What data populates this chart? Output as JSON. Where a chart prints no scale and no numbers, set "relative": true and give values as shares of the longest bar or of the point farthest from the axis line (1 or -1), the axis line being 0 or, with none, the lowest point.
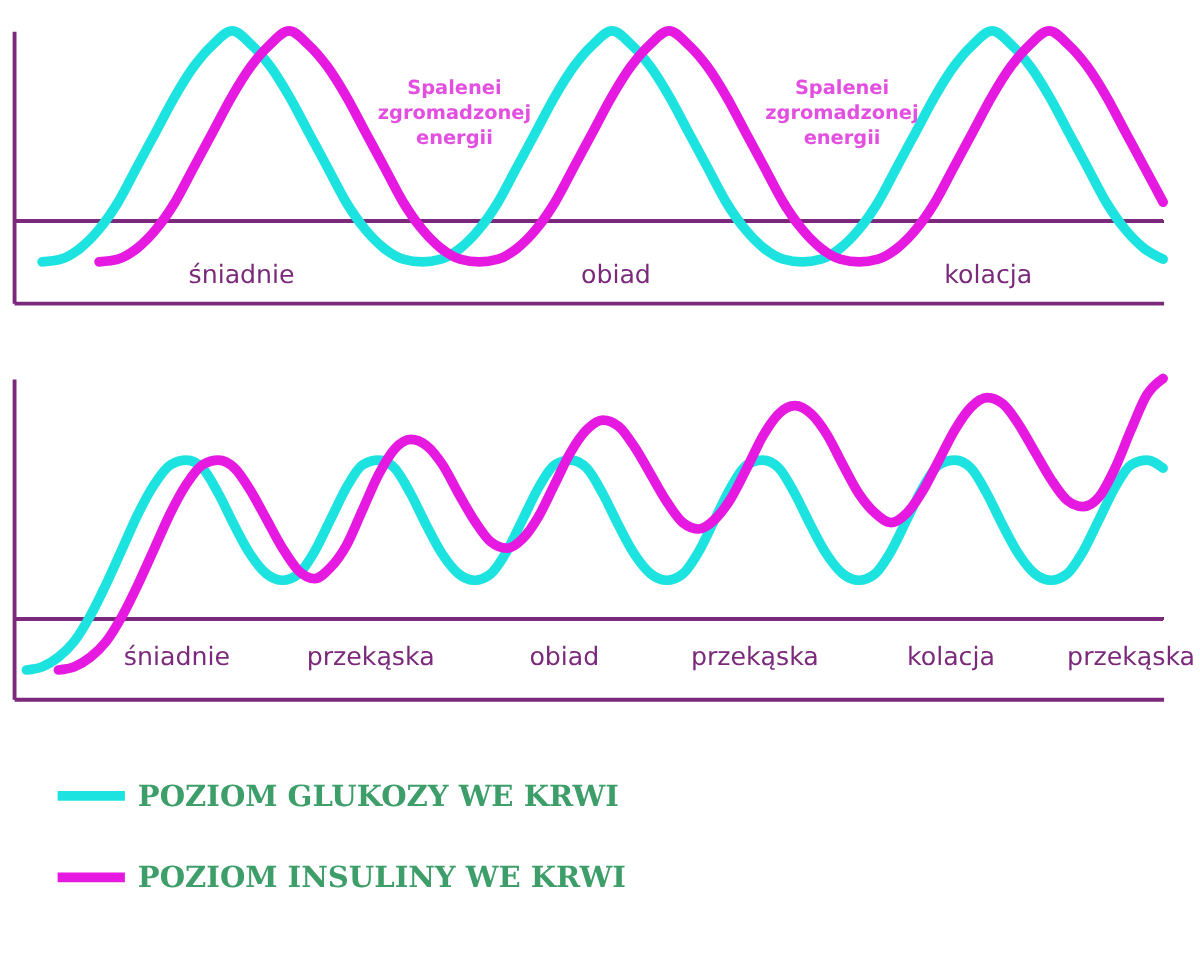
{
  "chart_data": [
    {
      "type": "line",
      "relative": true,
      "line_style": "solid",
      "categories": [
        null,
        null,
        null,
        null,
        null,
        null,
        null,
        null,
        null,
        null,
        null,
        null,
        null,
        null,
        null,
        null,
        null,
        null,
        null,
        null,
        null,
        null,
        null,
        null,
        null,
        null,
        null,
        null,
        null,
        null,
        null,
        null,
        null,
        null,
        null,
        null,
        null,
        null,
        null,
        null,
        null,
        null,
        null,
        null,
        null,
        null,
        null,
        null,
        null,
        null,
        null,
        null,
        null,
        null,
        null,
        null,
        null,
        null,
        null,
        null
      ],
      "series": [
        {
          "color": "#1de3e0",
          "values": [
            0.15,
            0.16,
            0.2,
            0.27,
            0.37,
            0.5,
            0.63,
            0.76,
            0.87,
            0.95,
            1.0,
            0.95,
            0.87,
            0.76,
            0.63,
            0.5,
            0.37,
            0.27,
            0.2,
            0.16,
            0.15,
            0.16,
            0.2,
            0.27,
            0.37,
            0.5,
            0.63,
            0.76,
            0.87,
            0.95,
            1.0,
            0.95,
            0.87,
            0.76,
            0.63,
            0.5,
            0.37,
            0.27,
            0.2,
            0.16,
            0.15,
            0.16,
            0.2,
            0.27,
            0.37,
            0.5,
            0.63,
            0.76,
            0.87,
            0.95,
            1.0,
            0.95,
            0.87,
            0.76,
            0.63,
            0.5,
            0.37,
            0.27,
            0.2,
            0.16
          ]
        },
        {
          "color": "#e619e0",
          "values": [
            null,
            null,
            null,
            0.15,
            0.16,
            0.2,
            0.27,
            0.37,
            0.5,
            0.63,
            0.76,
            0.87,
            0.95,
            1.0,
            0.95,
            0.87,
            0.76,
            0.63,
            0.5,
            0.37,
            0.27,
            0.2,
            0.16,
            0.15,
            0.16,
            0.2,
            0.27,
            0.37,
            0.5,
            0.63,
            0.76,
            0.87,
            0.95,
            1.0,
            0.95,
            0.87,
            0.76,
            0.63,
            0.5,
            0.37,
            0.27,
            0.2,
            0.16,
            0.15,
            0.16,
            0.2,
            0.27,
            0.37,
            0.5,
            0.63,
            0.76,
            0.87,
            0.95,
            1.0,
            0.95,
            0.87,
            0.76,
            0.63,
            0.5,
            0.37
          ]
        }
      ],
      "ref_lines": [
        {
          "axis": "y",
          "value": 0.3,
          "color": "#7b2a7b"
        }
      ],
      "annotations": [
        "śniadnie",
        "obiad",
        "kolacja",
        "Spalenei\nzgromadzonej\nenergii",
        "Spalenei\nzgromadzonej\nenergii"
      ]
    },
    {
      "type": "line",
      "relative": true,
      "legend": "bottom left",
      "line_style": "solid",
      "categories": [
        null,
        null,
        null,
        null,
        null,
        null,
        null,
        null,
        null,
        null,
        null,
        null,
        null,
        null,
        null,
        null,
        null,
        null,
        null,
        null,
        null,
        null,
        null,
        null,
        null,
        null,
        null,
        null,
        null,
        null,
        null,
        null,
        null,
        null,
        null,
        null,
        null,
        null,
        null,
        null,
        null,
        null,
        null,
        null,
        null,
        null,
        null,
        null,
        null,
        null,
        null,
        null,
        null,
        null,
        null,
        null,
        null,
        null,
        null,
        null,
        null,
        null,
        null,
        null,
        null,
        null,
        null,
        null,
        null,
        null,
        null,
        null
      ],
      "series": [
        {
          "name": "POZIOM GLUKOZY WE KRWI",
          "color": "#1de3e0",
          "values": [
            0.09,
            0.1,
            0.13,
            0.18,
            0.26,
            0.36,
            0.47,
            0.58,
            0.67,
            0.73,
            0.745,
            0.72,
            0.64,
            0.54,
            0.45,
            0.39,
            0.37,
            0.39,
            0.46,
            0.56,
            0.66,
            0.73,
            0.745,
            0.72,
            0.64,
            0.54,
            0.45,
            0.39,
            0.37,
            0.39,
            0.46,
            0.56,
            0.66,
            0.73,
            0.745,
            0.72,
            0.64,
            0.54,
            0.45,
            0.39,
            0.37,
            0.39,
            0.46,
            0.56,
            0.66,
            0.73,
            0.745,
            0.72,
            0.64,
            0.54,
            0.45,
            0.39,
            0.37,
            0.39,
            0.46,
            0.56,
            0.66,
            0.73,
            0.745,
            0.72,
            0.64,
            0.54,
            0.45,
            0.39,
            0.37,
            0.39,
            0.46,
            0.56,
            0.66,
            0.73,
            0.745,
            0.72
          ]
        },
        {
          "name": "POZIOM INSULINY WE KRWI",
          "color": "#e619e0",
          "values": [
            null,
            null,
            0.09,
            0.1,
            0.13,
            0.18,
            0.26,
            0.36,
            0.47,
            0.58,
            0.67,
            0.73,
            0.745,
            0.72,
            0.65,
            0.56,
            0.47,
            0.4,
            0.375,
            0.41,
            0.48,
            0.59,
            0.7,
            0.78,
            0.81,
            0.79,
            0.73,
            0.64,
            0.555,
            0.49,
            0.47,
            0.5,
            0.57,
            0.67,
            0.77,
            0.84,
            0.87,
            0.85,
            0.785,
            0.7,
            0.615,
            0.55,
            0.53,
            0.56,
            0.625,
            0.72,
            0.82,
            0.89,
            0.915,
            0.89,
            0.825,
            0.73,
            0.64,
            0.58,
            0.55,
            0.58,
            0.65,
            0.745,
            0.84,
            0.91,
            0.94,
            0.92,
            0.855,
            0.77,
            0.685,
            0.62,
            0.6,
            0.63,
            0.72,
            0.84,
            0.95,
            1.0
          ]
        }
      ],
      "ref_lines": [
        {
          "axis": "y",
          "value": 0.25,
          "color": "#7b2a7b"
        }
      ],
      "annotations": [
        "śniadnie",
        "przekąska",
        "obiad",
        "przekąska",
        "kolacja",
        "przekąska"
      ]
    }
  ]
}
